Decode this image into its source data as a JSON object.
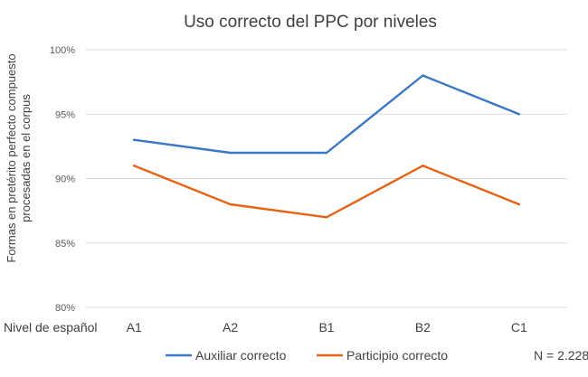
{
  "chart_data": {
    "type": "line",
    "title": "Uso correcto del PPC por niveles",
    "ylabel_lines": [
      "Formas en pretérito perfecto compuesto",
      "procesadas en el corpus"
    ],
    "xlabel": "Nivel de español",
    "categories": [
      "A1",
      "A2",
      "B1",
      "B2",
      "C1"
    ],
    "ylim": [
      0.8,
      1.0
    ],
    "yticks": [
      {
        "value": 0.8,
        "label": "80%"
      },
      {
        "value": 0.85,
        "label": "85%"
      },
      {
        "value": 0.9,
        "label": "90%"
      },
      {
        "value": 0.95,
        "label": "95%"
      },
      {
        "value": 1.0,
        "label": "100%"
      }
    ],
    "grid": true,
    "legend_position": "bottom",
    "series": [
      {
        "name": "Auxiliar correcto",
        "color": "#3a78c3",
        "values": [
          0.93,
          0.92,
          0.92,
          0.98,
          0.95
        ]
      },
      {
        "name": "Participio correcto",
        "color": "#e36414",
        "values": [
          0.91,
          0.88,
          0.87,
          0.91,
          0.88
        ]
      }
    ],
    "note": "N = 2.228"
  }
}
